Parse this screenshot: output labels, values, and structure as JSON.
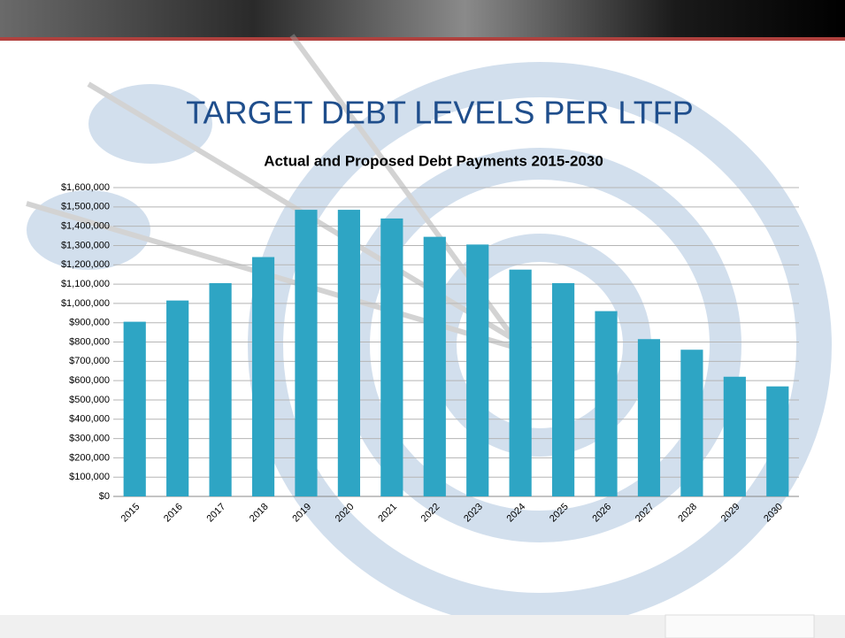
{
  "slide_title": "TARGET DEBT LEVELS PER LTFP",
  "chart_data": {
    "type": "bar",
    "title": "Actual and Proposed Debt Payments 2015-2030",
    "categories": [
      "2015",
      "2016",
      "2017",
      "2018",
      "2019",
      "2020",
      "2021",
      "2022",
      "2023",
      "2024",
      "2025",
      "2026",
      "2027",
      "2028",
      "2029",
      "2030"
    ],
    "values": [
      905000,
      1015000,
      1105000,
      1240000,
      1485000,
      1485000,
      1440000,
      1345000,
      1305000,
      1175000,
      1105000,
      960000,
      815000,
      760000,
      620000,
      570000
    ],
    "color": "#2ea5c4",
    "ylim": [
      0,
      1600000
    ],
    "yticks": [
      {
        "value": 0,
        "label": "$0"
      },
      {
        "value": 100000,
        "label": "$100,000"
      },
      {
        "value": 200000,
        "label": "$200,000"
      },
      {
        "value": 300000,
        "label": "$300,000"
      },
      {
        "value": 400000,
        "label": "$400,000"
      },
      {
        "value": 500000,
        "label": "$500,000"
      },
      {
        "value": 600000,
        "label": "$600,000"
      },
      {
        "value": 700000,
        "label": "$700,000"
      },
      {
        "value": 800000,
        "label": "$800,000"
      },
      {
        "value": 900000,
        "label": "$900,000"
      },
      {
        "value": 1000000,
        "label": "$1,000,000"
      },
      {
        "value": 1100000,
        "label": "$1,100,000"
      },
      {
        "value": 1200000,
        "label": "$1,200,000"
      },
      {
        "value": 1300000,
        "label": "$1,300,000"
      },
      {
        "value": 1400000,
        "label": "$1,400,000"
      },
      {
        "value": 1500000,
        "label": "$1,500,000"
      },
      {
        "value": 1600000,
        "label": "$1,600,000"
      }
    ],
    "grid": true
  }
}
